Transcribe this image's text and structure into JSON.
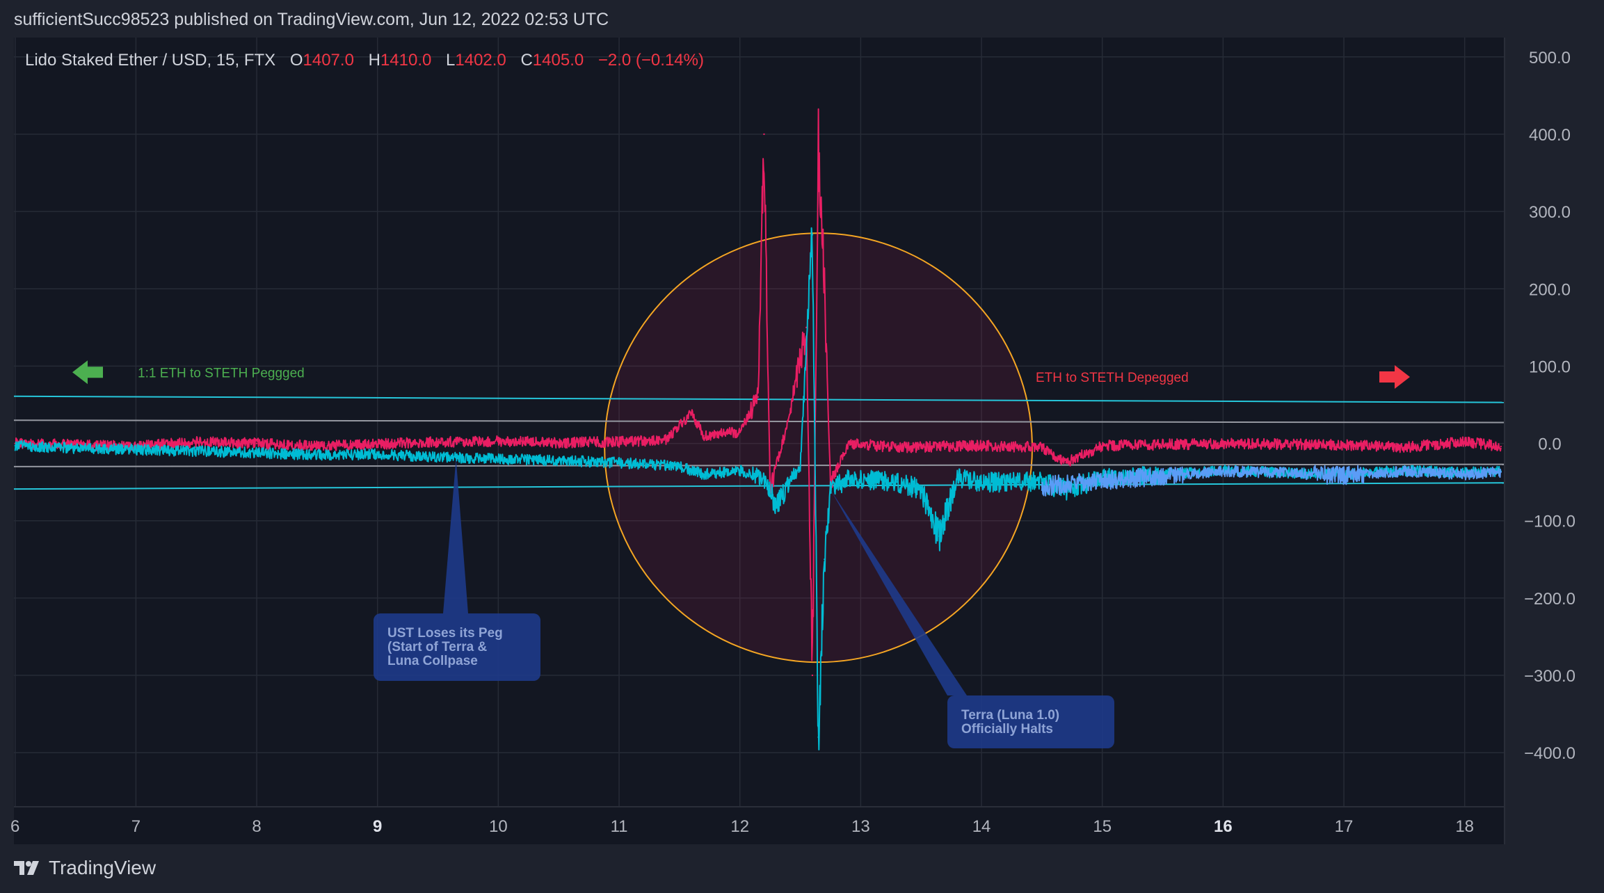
{
  "header": {
    "published": "sufficientSucc98523 published on TradingView.com, Jun 12, 2022 02:53 UTC"
  },
  "legend": {
    "symbol": "Lido Staked Ether / USD, 15, FTX",
    "o_label": "O",
    "o_value": "1407.0",
    "h_label": "H",
    "h_value": "1410.0",
    "l_label": "L",
    "l_value": "1402.0",
    "c_label": "C",
    "c_value": "1405.0",
    "change": "−2.0 (−0.14%)"
  },
  "branding": {
    "name": "TradingView",
    "logo_icon": "tradingview-logo-icon"
  },
  "colors": {
    "background": "#131722",
    "frame": "#1e222d",
    "grid": "#262b36",
    "series_red": "#e91e63",
    "series_cyan": "#00bcd4",
    "series_blue": "#5b9cf6",
    "circle_stroke": "#f5a623",
    "channel_line": "#26c6da",
    "inner_line": "#9598a1",
    "peg_green": "#4caf50",
    "depeg_red": "#f23645",
    "callout_bg": "#1e3a8a",
    "callout_text": "#8fa4d6"
  },
  "chart_data": {
    "type": "line",
    "x_ticks": [
      "6",
      "7",
      "8",
      "9",
      "10",
      "11",
      "12",
      "13",
      "14",
      "15",
      "16",
      "17",
      "18"
    ],
    "x_bold_ticks": [
      "9",
      "16"
    ],
    "y_ticks": [
      "500.0",
      "400.0",
      "300.0",
      "200.0",
      "100.0",
      "0.0",
      "−100.0",
      "−200.0",
      "−300.0",
      "−400.0"
    ],
    "y_range": [
      -470,
      525
    ],
    "x_range": [
      5.99,
      18.33
    ],
    "grid": true,
    "series": [
      {
        "color": "#e91e63",
        "points": [
          [
            6.0,
            0
          ],
          [
            6.5,
            -2
          ],
          [
            7.0,
            -4
          ],
          [
            7.5,
            2
          ],
          [
            8.0,
            0
          ],
          [
            8.5,
            -3
          ],
          [
            9.0,
            -1
          ],
          [
            9.5,
            2
          ],
          [
            10.0,
            3
          ],
          [
            10.5,
            1
          ],
          [
            11.0,
            2
          ],
          [
            11.4,
            5
          ],
          [
            11.6,
            40
          ],
          [
            11.7,
            10
          ],
          [
            12.0,
            15
          ],
          [
            12.15,
            60
          ],
          [
            12.2,
            400
          ],
          [
            12.25,
            -60
          ],
          [
            12.4,
            30
          ],
          [
            12.55,
            150
          ],
          [
            12.6,
            -300
          ],
          [
            12.65,
            380
          ],
          [
            12.7,
            200
          ],
          [
            12.75,
            -50
          ],
          [
            12.9,
            0
          ],
          [
            13.3,
            -5
          ],
          [
            14.0,
            -3
          ],
          [
            14.5,
            -5
          ],
          [
            14.7,
            -25
          ],
          [
            15.0,
            -3
          ],
          [
            16.0,
            0
          ],
          [
            17.0,
            -2
          ],
          [
            17.5,
            -5
          ],
          [
            18.0,
            2
          ],
          [
            18.3,
            -4
          ]
        ]
      },
      {
        "color": "#00bcd4",
        "points": [
          [
            6.0,
            -3
          ],
          [
            6.5,
            -6
          ],
          [
            7.0,
            -8
          ],
          [
            7.5,
            -10
          ],
          [
            8.0,
            -12
          ],
          [
            8.5,
            -15
          ],
          [
            9.0,
            -14
          ],
          [
            9.5,
            -18
          ],
          [
            10.0,
            -20
          ],
          [
            10.5,
            -22
          ],
          [
            11.0,
            -25
          ],
          [
            11.5,
            -30
          ],
          [
            11.7,
            -40
          ],
          [
            12.0,
            -35
          ],
          [
            12.2,
            -45
          ],
          [
            12.3,
            -80
          ],
          [
            12.5,
            -30
          ],
          [
            12.6,
            270
          ],
          [
            12.65,
            -380
          ],
          [
            12.7,
            -150
          ],
          [
            12.75,
            -60
          ],
          [
            12.9,
            -45
          ],
          [
            13.3,
            -50
          ],
          [
            13.5,
            -60
          ],
          [
            13.65,
            -120
          ],
          [
            13.8,
            -45
          ],
          [
            14.0,
            -50
          ],
          [
            14.5,
            -50
          ],
          [
            14.7,
            -60
          ],
          [
            15.0,
            -45
          ],
          [
            15.5,
            -40
          ],
          [
            16.0,
            -35
          ],
          [
            16.5,
            -38
          ],
          [
            17.0,
            -40
          ],
          [
            17.5,
            -35
          ],
          [
            18.0,
            -38
          ],
          [
            18.3,
            -36
          ]
        ]
      },
      {
        "color": "#5b9cf6",
        "points": [
          [
            14.5,
            -55
          ],
          [
            15.0,
            -48
          ],
          [
            15.5,
            -42
          ],
          [
            16.0,
            -36
          ],
          [
            16.5,
            -38
          ],
          [
            17.0,
            -42
          ],
          [
            17.5,
            -36
          ],
          [
            18.0,
            -40
          ],
          [
            18.3,
            -37
          ]
        ]
      }
    ],
    "drawings": {
      "channel_upper": [
        [
          5.99,
          61
        ],
        [
          18.33,
          53
        ]
      ],
      "channel_lower": [
        [
          5.99,
          -59
        ],
        [
          18.33,
          -51
        ]
      ],
      "inner_upper": [
        [
          5.99,
          30
        ],
        [
          18.33,
          27
        ]
      ],
      "inner_lower": [
        [
          5.99,
          -30
        ],
        [
          18.33,
          -27
        ]
      ],
      "circle": {
        "x0": 10.88,
        "x1": 14.42,
        "y0": 272,
        "y1": -283
      },
      "peg_label": "1:1 ETH to STETH Peggged",
      "depeg_label": "ETH to STETH Depegged",
      "peg_arrow_icon": "left-arrow-icon",
      "depeg_arrow_icon": "right-arrow-icon",
      "callout_ust": {
        "lines": [
          "UST Loses its Peg",
          "(Start of Terra &",
          "Luna Collpase"
        ],
        "anchor": [
          9.65,
          -20
        ]
      },
      "callout_terra": {
        "lines": [
          "Terra (Luna 1.0)",
          "Officially Halts"
        ],
        "anchor": [
          12.75,
          -60
        ]
      }
    }
  }
}
